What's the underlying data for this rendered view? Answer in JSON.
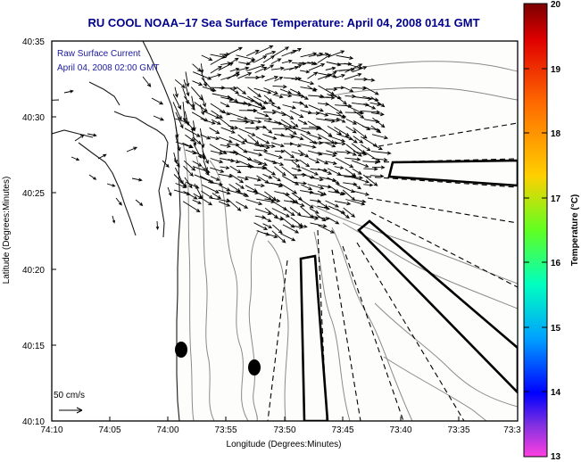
{
  "title": "RU COOL  NOAA–17  Sea Surface Temperature:  April 04, 2008 0141 GMT",
  "legend_line1": "Raw Surface Current",
  "legend_line2": "April 04, 2008 02:00 GMT",
  "xlabel": "Longitude (Degrees:Minutes)",
  "ylabel": "Latitude (Degrees:Minutes)",
  "x_ticks": [
    "74:10",
    "74:05",
    "74:00",
    "73:55",
    "73:50",
    "73:45",
    "73:40",
    "73:35",
    "73:3"
  ],
  "y_ticks": [
    "40:35",
    "40:30",
    "40:25",
    "40:20",
    "40:15",
    "40:10"
  ],
  "scale_label": "50 cm/s",
  "colorbar": {
    "label": "Temperature (°C)",
    "ticks": [
      "20",
      "19",
      "18",
      "17",
      "16",
      "15",
      "14",
      "13"
    ],
    "colors": [
      "#800000",
      "#ff0000",
      "#ff8000",
      "#ffff00",
      "#00ff00",
      "#00ffff",
      "#0000ff",
      "#ff00ff"
    ]
  },
  "colors": {
    "title": "#00008b",
    "legend_text": "#1a1aa0",
    "frame": "#000000"
  }
}
